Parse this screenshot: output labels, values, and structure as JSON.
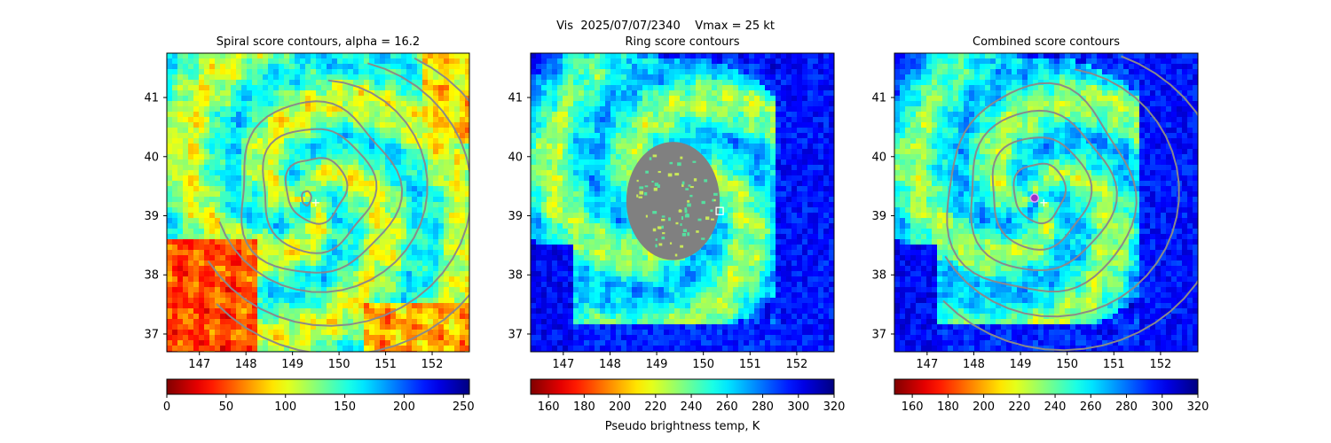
{
  "figure": {
    "suptitle_line1": "Vis  2025/07/07/2340    Vmax = 25 kt",
    "colorbar_label": "Pseudo brightness temp, K"
  },
  "colors": {
    "contour": "#8a8a8a",
    "masked_disk": "#808080",
    "center_marker": "#ffffff",
    "combined_marker": "#9b30c8"
  },
  "chart_data": [
    {
      "type": "heatmap",
      "title": "Spiral score contours, alpha = 16.2",
      "xlim": [
        146.3,
        152.8
      ],
      "ylim": [
        36.7,
        41.75
      ],
      "x_ticks": [
        147,
        148,
        149,
        150,
        151,
        152
      ],
      "y_ticks": [
        37,
        38,
        39,
        40,
        41
      ],
      "colormap": "jet_r",
      "colorbar": {
        "min": 0,
        "max": 255,
        "ticks": [
          0,
          50,
          100,
          150,
          200,
          250
        ]
      },
      "image_pattern": "warm",
      "storm_center": [
        149.3,
        39.3
      ],
      "marker_plus": [
        149.5,
        39.22
      ],
      "contours": "spiral",
      "masked_disk": null,
      "square_marker": null,
      "purple_marker": false
    },
    {
      "type": "heatmap",
      "title": "Ring score contours",
      "xlim": [
        146.3,
        152.8
      ],
      "ylim": [
        36.7,
        41.75
      ],
      "x_ticks": [
        147,
        148,
        149,
        150,
        151,
        152
      ],
      "y_ticks": [
        37,
        38,
        39,
        40,
        41
      ],
      "colormap": "jet_r",
      "colorbar": {
        "min": 150,
        "max": 320,
        "ticks": [
          160,
          180,
          200,
          220,
          240,
          260,
          280,
          300,
          320
        ]
      },
      "image_pattern": "cold",
      "storm_center": [
        149.3,
        39.3
      ],
      "marker_plus": null,
      "contours": "none",
      "masked_disk": {
        "center": [
          149.35,
          39.25
        ],
        "radius_deg": 1.0
      },
      "square_marker": [
        150.35,
        39.08
      ],
      "purple_marker": false
    },
    {
      "type": "heatmap",
      "title": "Combined score contours",
      "xlim": [
        146.3,
        152.8
      ],
      "ylim": [
        36.7,
        41.75
      ],
      "x_ticks": [
        147,
        148,
        149,
        150,
        151,
        152
      ],
      "y_ticks": [
        37,
        38,
        39,
        40,
        41
      ],
      "colormap": "jet_r",
      "colorbar": {
        "min": 150,
        "max": 320,
        "ticks": [
          160,
          180,
          200,
          220,
          240,
          260,
          280,
          300,
          320
        ]
      },
      "image_pattern": "cold",
      "storm_center": [
        149.3,
        39.3
      ],
      "marker_plus": [
        149.5,
        39.22
      ],
      "contours": "combined",
      "masked_disk": null,
      "square_marker": null,
      "purple_marker": true
    }
  ]
}
